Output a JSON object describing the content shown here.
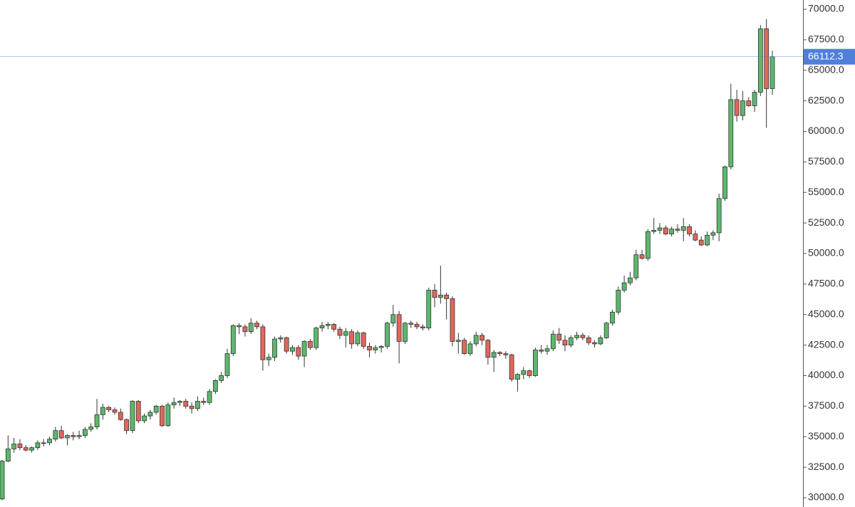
{
  "chart_data": {
    "type": "candlestick",
    "up_color": "#5cb86c",
    "down_color": "#e0675a",
    "last_price_color": "#4f7fd9",
    "ylim": [
      29242,
      70758
    ],
    "yticks": [
      {
        "value": 30000,
        "label": "30000.0"
      },
      {
        "value": 32500,
        "label": "32500.0"
      },
      {
        "value": 35000,
        "label": "35000.0"
      },
      {
        "value": 37500,
        "label": "37500.0"
      },
      {
        "value": 40000,
        "label": "40000.0"
      },
      {
        "value": 42500,
        "label": "42500.0"
      },
      {
        "value": 45000,
        "label": "45000.0"
      },
      {
        "value": 47500,
        "label": "47500.0"
      },
      {
        "value": 50000,
        "label": "50000.0"
      },
      {
        "value": 52500,
        "label": "52500.0"
      },
      {
        "value": 55000,
        "label": "55000.0"
      },
      {
        "value": 57500,
        "label": "57500.0"
      },
      {
        "value": 60000,
        "label": "60000.0"
      },
      {
        "value": 62500,
        "label": "62500.0"
      },
      {
        "value": 65000,
        "label": "65000.0"
      },
      {
        "value": 67500,
        "label": "67500.0"
      },
      {
        "value": 70000,
        "label": "70000.0"
      }
    ],
    "open": [
      29900,
      33000,
      34000,
      34400,
      34100,
      33900,
      34100,
      34500,
      34500,
      34800,
      35500,
      34900,
      35100,
      35000,
      35100,
      35600,
      35800,
      36800,
      37400,
      37200,
      37000,
      36400,
      35500,
      37900,
      36300,
      36700,
      37000,
      37500,
      35900,
      37600,
      37800,
      37900,
      37500,
      37300,
      37900,
      37800,
      38700,
      39600,
      40000,
      41800,
      44100,
      44000,
      43600,
      44300,
      44000,
      41300,
      41500,
      43000,
      43100,
      42000,
      42300,
      41600,
      42800,
      42300,
      43900,
      44100,
      44200,
      43800,
      43300,
      43600,
      42600,
      43500,
      42400,
      42100,
      42300,
      42400,
      44300,
      45000,
      42800,
      44300,
      44200,
      44000,
      43900,
      47000,
      46400,
      46600,
      46300,
      42800,
      42900,
      41800,
      42600,
      43300,
      42900,
      41500,
      41900,
      41800,
      41700,
      39700,
      40100,
      40400,
      40000,
      42100,
      42000,
      42200,
      43400,
      42900,
      42500,
      43100,
      43300,
      43100,
      42700,
      42600,
      43100,
      44300,
      45200,
      47000,
      47600,
      48000,
      49900,
      49600,
      51800,
      51900,
      52100,
      51600,
      52000,
      51900,
      52200,
      51600,
      51100,
      50700,
      51500,
      51700,
      54500,
      57100,
      62600,
      61300,
      62500,
      62100,
      63200,
      68400,
      63500
    ],
    "high": [
      33100,
      35100,
      34900,
      34800,
      34300,
      34200,
      34700,
      34800,
      35000,
      35800,
      35900,
      35200,
      35400,
      35500,
      35800,
      36100,
      38100,
      37700,
      37500,
      37400,
      37300,
      36500,
      38000,
      38000,
      36900,
      37200,
      37600,
      37600,
      37800,
      38200,
      38000,
      38100,
      37800,
      38300,
      38200,
      38900,
      39700,
      40300,
      42200,
      44200,
      44300,
      44200,
      44700,
      44500,
      44200,
      41800,
      43200,
      43300,
      43200,
      42500,
      42500,
      42900,
      43000,
      44000,
      44400,
      44400,
      44300,
      44000,
      43900,
      43800,
      43700,
      43600,
      42700,
      42500,
      42500,
      44400,
      45800,
      45300,
      44400,
      44500,
      44400,
      44200,
      47200,
      47500,
      49000,
      46800,
      46500,
      43500,
      43100,
      42800,
      43600,
      43500,
      43000,
      42100,
      42000,
      42000,
      41800,
      40200,
      40700,
      40500,
      42300,
      42500,
      42500,
      43700,
      43900,
      43300,
      43300,
      43600,
      43500,
      43300,
      42900,
      43300,
      44400,
      45400,
      47300,
      48200,
      48500,
      50300,
      50300,
      52000,
      52900,
      52500,
      52300,
      52200,
      52400,
      52900,
      52400,
      51900,
      51400,
      51800,
      51900,
      54900,
      57200,
      63900,
      63400,
      63300,
      62800,
      63400,
      68700,
      69200,
      66600
    ],
    "low": [
      29800,
      32900,
      33700,
      33900,
      33800,
      33700,
      33900,
      34200,
      34300,
      34600,
      34800,
      34300,
      34700,
      34800,
      34900,
      35400,
      35600,
      36400,
      37000,
      36800,
      36300,
      35200,
      35300,
      36100,
      36100,
      36400,
      36800,
      35800,
      35800,
      37300,
      37500,
      37300,
      36900,
      37100,
      37600,
      37600,
      38500,
      39400,
      39800,
      41600,
      43400,
      43200,
      43400,
      43800,
      40400,
      40800,
      41200,
      42700,
      41800,
      41700,
      41300,
      40700,
      42100,
      42100,
      43600,
      43800,
      43600,
      43000,
      42300,
      42200,
      42400,
      42200,
      41500,
      41800,
      41900,
      42200,
      44000,
      41000,
      42600,
      43900,
      43800,
      43700,
      43700,
      45600,
      45900,
      44600,
      42400,
      41800,
      41700,
      41600,
      42400,
      42500,
      40900,
      40300,
      41600,
      41400,
      39500,
      38700,
      39700,
      39800,
      39900,
      41800,
      41700,
      42000,
      42600,
      42000,
      42300,
      42900,
      42900,
      42500,
      42300,
      42500,
      43000,
      44100,
      45000,
      46800,
      47400,
      47800,
      49500,
      49400,
      51600,
      51600,
      51500,
      51400,
      51700,
      51000,
      51400,
      51000,
      50600,
      50600,
      51100,
      51000,
      54300,
      56900,
      60800,
      60900,
      62000,
      61600,
      62900,
      60300,
      63000
    ],
    "close": [
      33000,
      34000,
      34400,
      34100,
      33900,
      34100,
      34500,
      34500,
      34800,
      35500,
      34900,
      35100,
      35000,
      35100,
      35600,
      35800,
      36800,
      37400,
      37200,
      37000,
      36400,
      35500,
      37900,
      36300,
      36700,
      37000,
      37500,
      35900,
      37600,
      37800,
      37900,
      37500,
      37300,
      37900,
      37800,
      38700,
      39600,
      40000,
      41800,
      44100,
      44000,
      43600,
      44300,
      44000,
      41300,
      41500,
      43000,
      43100,
      42000,
      42300,
      41600,
      42800,
      42300,
      43900,
      44100,
      44200,
      43800,
      43300,
      43600,
      42600,
      43500,
      42400,
      42100,
      42300,
      42400,
      44300,
      45000,
      42800,
      44300,
      44200,
      44000,
      43900,
      47000,
      46400,
      46600,
      46300,
      42800,
      42900,
      41800,
      42600,
      43300,
      42900,
      41500,
      41900,
      41800,
      41700,
      39700,
      40100,
      40400,
      40000,
      42100,
      42000,
      42200,
      43400,
      42900,
      42500,
      43100,
      43300,
      43100,
      42700,
      42600,
      43100,
      44300,
      45200,
      47000,
      47600,
      48000,
      49900,
      49600,
      51800,
      51900,
      52100,
      51600,
      52000,
      51900,
      52200,
      51600,
      51100,
      50700,
      51500,
      51700,
      54500,
      57100,
      62600,
      61300,
      62500,
      62100,
      63200,
      68400,
      63500,
      66112.3
    ]
  }
}
